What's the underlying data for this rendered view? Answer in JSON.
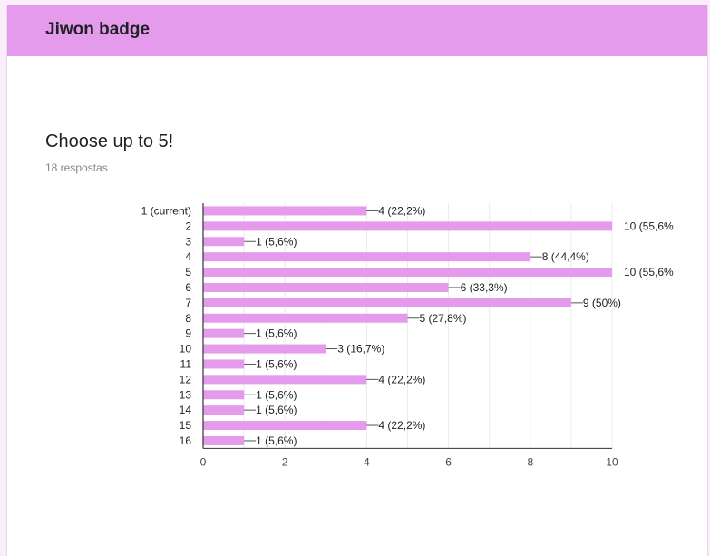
{
  "header": {
    "title": "Jiwon badge"
  },
  "question": {
    "title": "Choose up to 5!",
    "responses": "18 respostas"
  },
  "colors": {
    "accent": "#e59bec",
    "bar": "#e59bec",
    "grid": "#ebebeb",
    "axis": "#333333"
  },
  "chart_data": {
    "type": "bar",
    "orientation": "horizontal",
    "categories": [
      "1 (current)",
      "2",
      "3",
      "4",
      "5",
      "6",
      "7",
      "8",
      "9",
      "10",
      "11",
      "12",
      "13",
      "14",
      "15",
      "16"
    ],
    "values": [
      4,
      10,
      1,
      8,
      10,
      6,
      9,
      5,
      1,
      3,
      1,
      4,
      1,
      1,
      4,
      1
    ],
    "data_labels": [
      "4 (22,2%)",
      "10 (55,6%",
      "1 (5,6%)",
      "8 (44,4%)",
      "10 (55,6%",
      "6 (33,3%)",
      "9 (50%)",
      "5 (27,8%)",
      "1 (5,6%)",
      "3 (16,7%)",
      "1 (5,6%)",
      "4 (22,2%)",
      "1 (5,6%)",
      "1 (5,6%)",
      "4 (22,2%)",
      "1 (5,6%)"
    ],
    "xlim": [
      0,
      10
    ],
    "xticks": [
      0,
      2,
      4,
      6,
      8,
      10
    ],
    "xticklabels": [
      "0",
      "2",
      "4",
      "6",
      "8",
      "10"
    ],
    "grid": true
  }
}
